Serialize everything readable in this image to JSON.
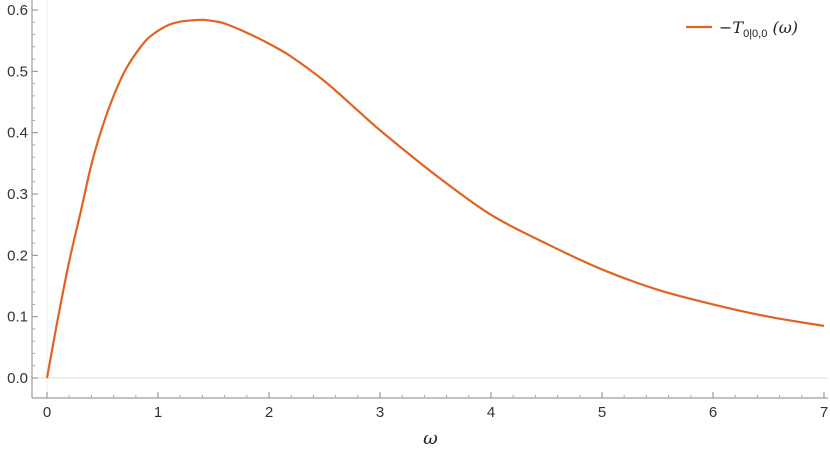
{
  "chart_data": {
    "type": "line",
    "title": "",
    "xlabel": "ω",
    "ylabel": "",
    "xlim": [
      0,
      7
    ],
    "ylim": [
      0,
      0.6
    ],
    "x_ticks": [
      0,
      1,
      2,
      3,
      4,
      5,
      6,
      7
    ],
    "y_ticks": [
      0.0,
      0.1,
      0.2,
      0.3,
      0.4,
      0.5,
      0.6
    ],
    "x_tick_labels": [
      "0",
      "1",
      "2",
      "3",
      "4",
      "5",
      "6",
      "7"
    ],
    "y_tick_labels": [
      "0.0",
      "0.1",
      "0.2",
      "0.3",
      "0.4",
      "0.5",
      "0.6"
    ],
    "grid": false,
    "legend_position": "top-right",
    "legend": {
      "prefix": "−",
      "symbol": "T",
      "subscript": "0|0,0",
      "suffix": " (ω)"
    },
    "series": [
      {
        "name": "−T0|0,0 (ω)",
        "color": "#e06322",
        "x": [
          0,
          0.1,
          0.2,
          0.3,
          0.4,
          0.5,
          0.6,
          0.7,
          0.8,
          0.9,
          1.0,
          1.1,
          1.2,
          1.3,
          1.4,
          1.5,
          1.6,
          1.8,
          2.0,
          2.2,
          2.5,
          2.8,
          3.0,
          3.5,
          4.0,
          4.5,
          5.0,
          5.5,
          6.0,
          6.5,
          7.0
        ],
        "y": [
          0.0,
          0.099,
          0.19,
          0.268,
          0.348,
          0.41,
          0.46,
          0.5,
          0.529,
          0.552,
          0.566,
          0.576,
          0.581,
          0.583,
          0.584,
          0.582,
          0.578,
          0.563,
          0.545,
          0.524,
          0.484,
          0.436,
          0.404,
          0.331,
          0.266,
          0.219,
          0.177,
          0.144,
          0.12,
          0.1,
          0.085
        ]
      }
    ]
  }
}
